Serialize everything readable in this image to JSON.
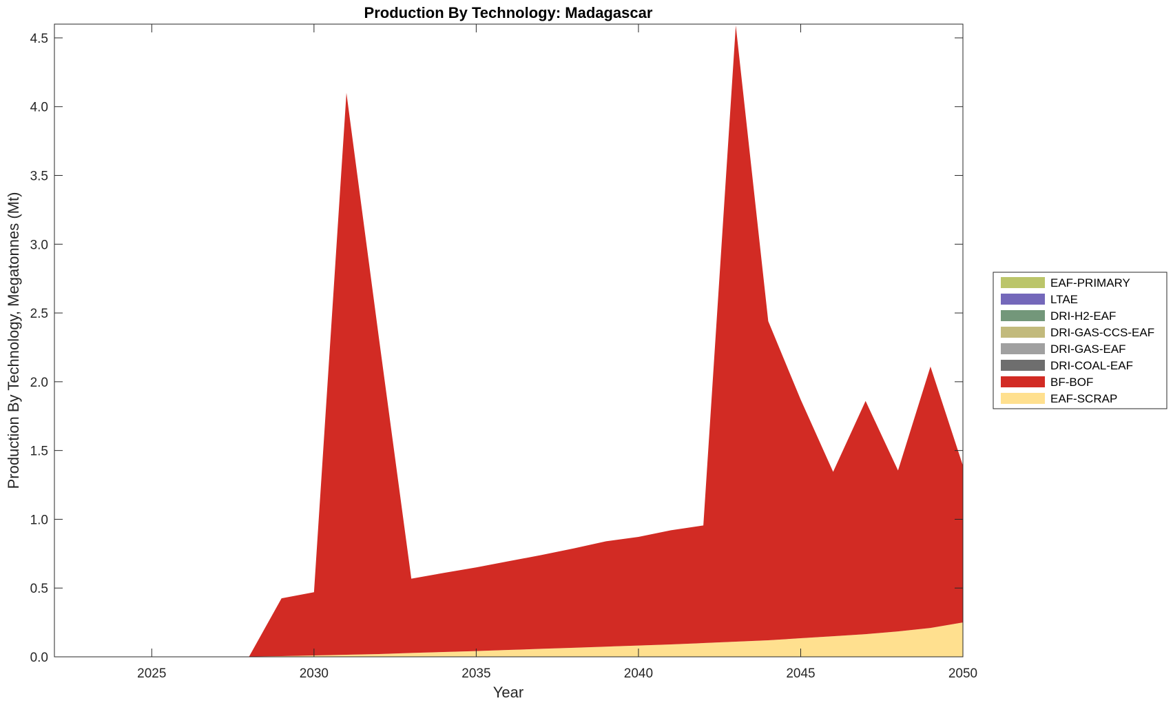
{
  "chart_data": {
    "type": "area",
    "stacked": true,
    "title": "Production By Technology: Madagascar",
    "xlabel": "Year",
    "ylabel": "Production By Technology, Megatonnes (Mt)",
    "xlim": [
      2022,
      2050
    ],
    "ylim": [
      0,
      4.6
    ],
    "x_ticks": [
      2025,
      2030,
      2035,
      2040,
      2045,
      2050
    ],
    "y_ticks": [
      0,
      0.5,
      1.0,
      1.5,
      2.0,
      2.5,
      3.0,
      3.5,
      4.0,
      4.5
    ],
    "y_tick_labels": [
      "0.0",
      "0.5",
      "1.0",
      "1.5",
      "2.0",
      "2.5",
      "3.0",
      "3.5",
      "4.0",
      "4.5"
    ],
    "grid": false,
    "legend_position": "outside right",
    "x": [
      2022,
      2023,
      2024,
      2025,
      2026,
      2027,
      2028,
      2029,
      2030,
      2031,
      2032,
      2033,
      2034,
      2035,
      2036,
      2037,
      2038,
      2039,
      2040,
      2041,
      2042,
      2043,
      2044,
      2045,
      2046,
      2047,
      2048,
      2049,
      2050
    ],
    "series": [
      {
        "name": "EAF-SCRAP",
        "color": "#FFE08F",
        "values": [
          0,
          0,
          0,
          0,
          0,
          0,
          0.002,
          0.005,
          0.01,
          0.015,
          0.02,
          0.028,
          0.035,
          0.042,
          0.05,
          0.058,
          0.066,
          0.074,
          0.082,
          0.09,
          0.1,
          0.11,
          0.12,
          0.135,
          0.15,
          0.165,
          0.185,
          0.21,
          0.25
        ]
      },
      {
        "name": "BF-BOF",
        "color": "#D22B24",
        "values": [
          0,
          0,
          0,
          0,
          0,
          0,
          0,
          0.42,
          0.46,
          4.085,
          2.3,
          0.54,
          0.575,
          0.608,
          0.645,
          0.682,
          0.722,
          0.766,
          0.79,
          0.83,
          0.855,
          4.48,
          2.32,
          1.735,
          1.195,
          1.695,
          1.17,
          1.9,
          1.14
        ]
      },
      {
        "name": "DRI-COAL-EAF",
        "color": "#6E6E6E",
        "values": [
          0,
          0,
          0,
          0,
          0,
          0,
          0,
          0,
          0,
          0,
          0,
          0,
          0,
          0,
          0,
          0,
          0,
          0,
          0,
          0,
          0,
          0,
          0,
          0,
          0,
          0,
          0,
          0,
          0
        ]
      },
      {
        "name": "DRI-GAS-EAF",
        "color": "#A0A0A0",
        "values": [
          0,
          0,
          0,
          0,
          0,
          0,
          0,
          0,
          0,
          0,
          0,
          0,
          0,
          0,
          0,
          0,
          0,
          0,
          0,
          0,
          0,
          0,
          0,
          0,
          0,
          0,
          0,
          0,
          0
        ]
      },
      {
        "name": "DRI-GAS-CCS-EAF",
        "color": "#C2BA7C",
        "values": [
          0,
          0,
          0,
          0,
          0,
          0,
          0,
          0,
          0,
          0,
          0,
          0,
          0,
          0,
          0,
          0,
          0,
          0,
          0,
          0,
          0,
          0,
          0,
          0,
          0,
          0,
          0,
          0,
          0
        ]
      },
      {
        "name": "DRI-H2-EAF",
        "color": "#73977A",
        "values": [
          0,
          0,
          0,
          0,
          0,
          0,
          0,
          0,
          0,
          0,
          0,
          0,
          0,
          0,
          0,
          0,
          0,
          0,
          0,
          0,
          0,
          0,
          0,
          0,
          0,
          0,
          0,
          0,
          0
        ]
      },
      {
        "name": "LTAE",
        "color": "#7468BA",
        "values": [
          0,
          0,
          0,
          0,
          0,
          0,
          0,
          0,
          0,
          0,
          0,
          0,
          0,
          0,
          0,
          0,
          0,
          0,
          0,
          0,
          0,
          0,
          0,
          0,
          0,
          0,
          0,
          0,
          0
        ]
      },
      {
        "name": "EAF-PRIMARY",
        "color": "#BBC56A",
        "values": [
          0,
          0,
          0,
          0,
          0,
          0,
          0,
          0,
          0,
          0,
          0,
          0,
          0,
          0,
          0,
          0,
          0,
          0,
          0,
          0,
          0,
          0,
          0,
          0,
          0,
          0,
          0,
          0,
          0
        ]
      }
    ],
    "legend_order": [
      "EAF-PRIMARY",
      "LTAE",
      "DRI-H2-EAF",
      "DRI-GAS-CCS-EAF",
      "DRI-GAS-EAF",
      "DRI-COAL-EAF",
      "BF-BOF",
      "EAF-SCRAP"
    ]
  }
}
